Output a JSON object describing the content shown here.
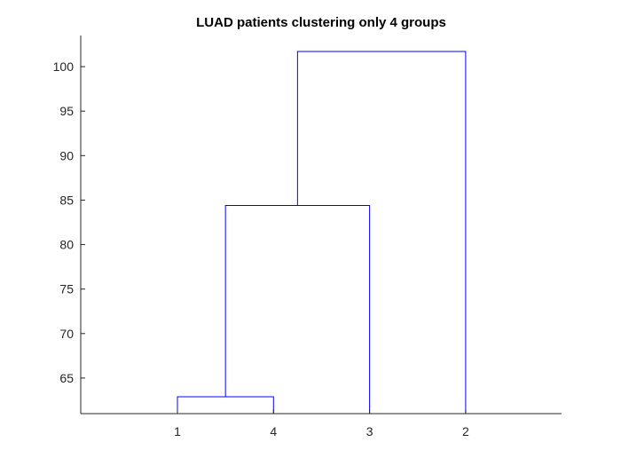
{
  "chart_data": {
    "type": "dendrogram",
    "title": "LUAD patients clustering only 4 groups",
    "xlabel": "",
    "ylabel": "",
    "leaf_order": [
      "1",
      "4",
      "3",
      "2"
    ],
    "ylim": [
      61,
      103.5
    ],
    "yticks": [
      65,
      70,
      75,
      80,
      85,
      90,
      95,
      100
    ],
    "grid": false,
    "merges": [
      {
        "left": "1",
        "right": "4",
        "height": 62.9
      },
      {
        "left": "1-4",
        "right": "3",
        "height": 84.4
      },
      {
        "left": "1-4-3",
        "right": "2",
        "height": 101.7
      }
    ],
    "colors": {
      "link": "#0000ff",
      "axis": "#262626",
      "background": "#ffffff"
    }
  }
}
